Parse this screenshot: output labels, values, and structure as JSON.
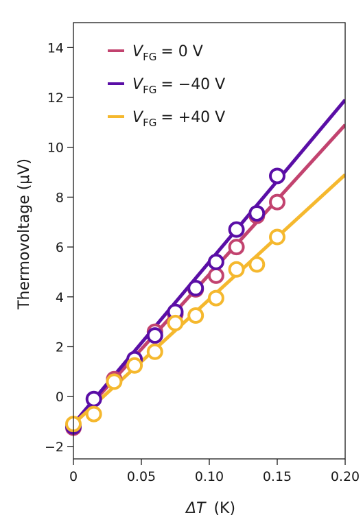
{
  "chart_data": {
    "type": "scatter",
    "xlabel_symbol": "ΔT",
    "xlabel_unit": "(K)",
    "ylabel": "Thermovoltage (μV)",
    "xlim": [
      0,
      0.2
    ],
    "ylim": [
      -2.5,
      15
    ],
    "x_ticks": [
      0,
      0.05,
      0.1,
      0.15,
      0.2
    ],
    "x_tick_labels": [
      "0",
      "0.05",
      "0.10",
      "0.15",
      "0.20"
    ],
    "y_ticks": [
      -2,
      0,
      2,
      4,
      6,
      8,
      10,
      12,
      14
    ],
    "y_tick_labels": [
      "−2",
      "0",
      "2",
      "4",
      "6",
      "8",
      "10",
      "12",
      "14"
    ],
    "grid": false,
    "legend_position": "top-left",
    "legend_prefix": "V",
    "legend_sub": "FG",
    "series": [
      {
        "name": "= 0 V",
        "color": "#c2436f",
        "x": [
          0.0,
          0.03,
          0.06,
          0.075,
          0.09,
          0.105,
          0.12,
          0.135,
          0.15
        ],
        "y": [
          -1.25,
          0.7,
          2.6,
          3.3,
          4.3,
          4.85,
          6.0,
          7.25,
          7.8
        ],
        "fit": {
          "slope": 60,
          "intercept": -1.1
        }
      },
      {
        "name": "= −40 V",
        "color": "#5a0ea6",
        "x": [
          0.0,
          0.015,
          0.045,
          0.06,
          0.075,
          0.09,
          0.105,
          0.12,
          0.135,
          0.15
        ],
        "y": [
          -1.2,
          -0.1,
          1.5,
          2.45,
          3.4,
          4.35,
          5.4,
          6.7,
          7.35,
          8.85
        ],
        "fit": {
          "slope": 65,
          "intercept": -1.1
        }
      },
      {
        "name": "= +40 V",
        "color": "#f5b82e",
        "x": [
          0.0,
          0.015,
          0.03,
          0.045,
          0.06,
          0.075,
          0.09,
          0.105,
          0.12,
          0.135,
          0.15
        ],
        "y": [
          -1.1,
          -0.7,
          0.6,
          1.25,
          1.8,
          2.95,
          3.25,
          3.95,
          5.1,
          5.3,
          6.4
        ],
        "fit": {
          "slope": 50,
          "intercept": -1.1
        }
      }
    ],
    "draw_order": [
      0,
      1,
      2
    ]
  }
}
